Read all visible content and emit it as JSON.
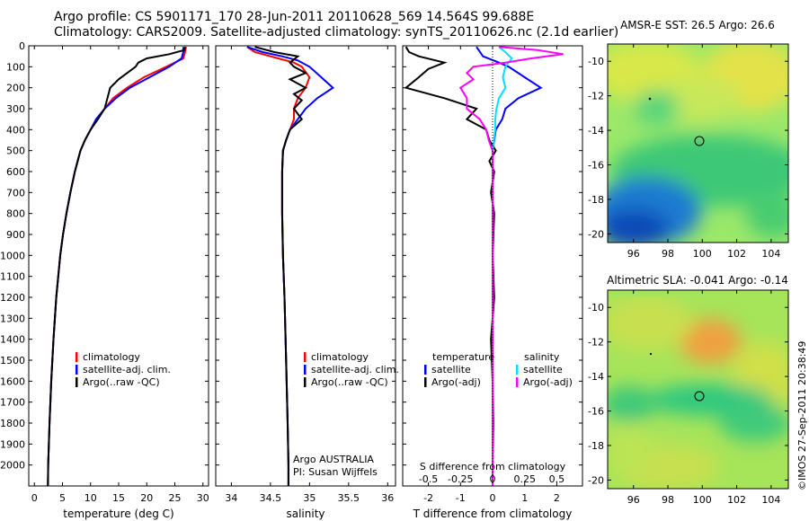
{
  "header": {
    "line1": "Argo profile: CS 5901171_170 28-Jun-2011 20110628_569 14.564S 99.688E",
    "line2": "Climatology: CARS2009. Satellite-adjusted climatology: synTS_20110626.nc (2.1d earlier)"
  },
  "credit": "©IMOS 27-Sep-2011 20:38:49",
  "colors": {
    "climatology": "#ff0000",
    "satellite": "#0000ff",
    "argo": "#000000",
    "salinity_satellite": "#00e0ff",
    "salinity_argo": "#ff00ff"
  },
  "chart_data": [
    {
      "type": "line",
      "panel": "temperature",
      "xlabel": "temperature (deg C)",
      "ylabel": "",
      "xlim": [
        -1,
        31
      ],
      "ylim": [
        2100,
        0
      ],
      "xticks": [
        "0",
        "5",
        "10",
        "15",
        "20",
        "25",
        "30"
      ],
      "yticks": [
        "0",
        "100",
        "200",
        "300",
        "400",
        "500",
        "600",
        "700",
        "800",
        "900",
        "1000",
        "1100",
        "1200",
        "1300",
        "1400",
        "1500",
        "1600",
        "1700",
        "1800",
        "1900",
        "2000"
      ],
      "legend": [
        "climatology",
        "satellite-adj. clim.",
        "Argo(..raw -QC)"
      ],
      "series": [
        {
          "name": "climatology",
          "color": "#ff0000",
          "depth": [
            5,
            30,
            60,
            100,
            150,
            200,
            250,
            300,
            350,
            400,
            450,
            500,
            600,
            700,
            800,
            900,
            1000,
            1200,
            1400,
            1600,
            1800,
            2000,
            2100
          ],
          "values": [
            27,
            26.8,
            26.5,
            23.5,
            19.5,
            16.5,
            14,
            12.5,
            11,
            10,
            9,
            8.2,
            7.2,
            6.4,
            5.7,
            5.1,
            4.6,
            3.9,
            3.4,
            3.0,
            2.7,
            2.45,
            2.4
          ]
        },
        {
          "name": "satellite-adj. clim.",
          "color": "#0000ff",
          "depth": [
            5,
            30,
            60,
            100,
            150,
            200,
            250,
            300,
            350,
            400,
            450,
            500,
            600,
            700,
            800,
            900,
            1000,
            1200,
            1400,
            1600,
            1800,
            2000,
            2100
          ],
          "values": [
            26.5,
            26.5,
            26.2,
            24,
            20.5,
            17,
            14.5,
            12.5,
            11,
            10,
            9,
            8.2,
            7.2,
            6.4,
            5.7,
            5.1,
            4.6,
            3.9,
            3.4,
            3.0,
            2.7,
            2.45,
            2.4
          ]
        },
        {
          "name": "Argo(..raw -QC)",
          "color": "#000000",
          "depth": [
            5,
            20,
            40,
            60,
            80,
            100,
            130,
            160,
            200,
            250,
            300,
            350,
            400,
            450,
            500,
            600,
            700,
            800,
            900,
            1000,
            1200,
            1400,
            1600,
            1800,
            2000,
            2100
          ],
          "values": [
            26.8,
            26.7,
            24,
            20,
            18.5,
            18,
            16.5,
            15,
            13.5,
            13,
            12.5,
            11.3,
            10,
            9,
            8.2,
            7.2,
            6.4,
            5.7,
            5.1,
            4.6,
            3.9,
            3.4,
            3.0,
            2.7,
            2.45,
            2.4
          ]
        }
      ]
    },
    {
      "type": "line",
      "panel": "salinity",
      "xlabel": "salinity",
      "ylabel": "",
      "xlim": [
        33.8,
        36.1
      ],
      "ylim": [
        2100,
        0
      ],
      "xticks": [
        "34",
        "34.5",
        "35",
        "35.5",
        "36"
      ],
      "legend": [
        "climatology",
        "satellite-adj. clim.",
        "Argo(..raw -QC)"
      ],
      "annotation": [
        "Argo AUSTRALIA",
        "PI: Susan Wijffels"
      ],
      "series": [
        {
          "name": "climatology",
          "color": "#ff0000",
          "depth": [
            5,
            30,
            60,
            80,
            100,
            150,
            200,
            250,
            300,
            350,
            400,
            450,
            500,
            600,
            800,
            1000,
            1200,
            1500,
            1800,
            2000,
            2100
          ],
          "values": [
            34.2,
            34.3,
            34.6,
            34.8,
            34.9,
            35.0,
            34.95,
            34.85,
            34.8,
            34.8,
            34.75,
            34.7,
            34.66,
            34.65,
            34.65,
            34.66,
            34.68,
            34.7,
            34.72,
            34.73,
            34.73
          ]
        },
        {
          "name": "satellite-adj. clim.",
          "color": "#0000ff",
          "depth": [
            5,
            30,
            50,
            70,
            100,
            150,
            200,
            250,
            300,
            350,
            400,
            450,
            500,
            600,
            800,
            1000,
            1200,
            1500,
            1800,
            2000,
            2100
          ],
          "values": [
            34.2,
            34.4,
            34.65,
            34.85,
            35.0,
            35.15,
            35.3,
            35.1,
            34.95,
            34.85,
            34.75,
            34.7,
            34.66,
            34.65,
            34.65,
            34.66,
            34.68,
            34.7,
            34.72,
            34.73,
            34.73
          ]
        },
        {
          "name": "Argo(..raw -QC)",
          "color": "#000000",
          "depth": [
            5,
            30,
            50,
            80,
            100,
            130,
            160,
            200,
            230,
            260,
            300,
            350,
            400,
            450,
            500,
            600,
            800,
            1000,
            1200,
            1500,
            1800,
            2000,
            2100
          ],
          "values": [
            34.3,
            34.55,
            34.85,
            34.75,
            34.8,
            34.95,
            34.75,
            34.95,
            34.8,
            34.9,
            34.8,
            34.9,
            34.75,
            34.7,
            34.66,
            34.65,
            34.65,
            34.66,
            34.68,
            34.7,
            34.72,
            34.73,
            34.73
          ]
        }
      ]
    },
    {
      "type": "line",
      "panel": "difference",
      "xlabel": "T difference from climatology",
      "xlabel_top": "S difference from climatology",
      "xlim": [
        -2.8,
        2.8
      ],
      "ylim": [
        2100,
        0
      ],
      "xticks": [
        "-2",
        "-1",
        "0",
        "1",
        "2"
      ],
      "xticks_top": [
        "-0.5",
        "-0.25",
        "0",
        "0.25",
        "0.5"
      ],
      "legend_temperature_title": "temperature",
      "legend_salinity_title": "salinity",
      "legend_temperature": [
        "satellite",
        "Argo(-adj)"
      ],
      "legend_salinity": [
        "satellite",
        "Argo(-adj)"
      ],
      "series": [
        {
          "name": "T satellite",
          "color": "#0000ff",
          "depth": [
            5,
            50,
            80,
            100,
            150,
            200,
            250,
            300,
            350,
            400,
            500,
            700,
            1000,
            1500,
            2000,
            2100
          ],
          "values": [
            -0.5,
            -0.3,
            0.2,
            0.5,
            1.0,
            1.5,
            0.8,
            0.4,
            0.3,
            0.1,
            0,
            0,
            0,
            0,
            0,
            0
          ]
        },
        {
          "name": "T Argo(-adj)",
          "color": "#000000",
          "depth": [
            5,
            30,
            50,
            80,
            110,
            150,
            200,
            250,
            300,
            350,
            400,
            450,
            500,
            550,
            600,
            700,
            800,
            1000,
            1200,
            1400,
            1600,
            1800,
            2000,
            2100
          ],
          "values": [
            -2.7,
            -2.6,
            -2.3,
            -1.5,
            -2.0,
            -2.3,
            -2.7,
            -1.5,
            -0.5,
            -0.8,
            -0.2,
            -0.1,
            0.1,
            -0.1,
            0.05,
            -0.05,
            0.05,
            0,
            0.05,
            -0.05,
            0,
            0.02,
            0,
            0
          ]
        },
        {
          "name": "S satellite",
          "color": "#00e0ff",
          "depth": [
            5,
            30,
            60,
            100,
            150,
            200,
            250,
            300,
            350,
            400,
            500,
            700,
            1000,
            1500,
            2000,
            2100
          ],
          "values": [
            0.05,
            0.1,
            0.15,
            0.1,
            0.08,
            0.1,
            0.05,
            0.03,
            0.02,
            0.02,
            0,
            0,
            0,
            0,
            0,
            0
          ]
        },
        {
          "name": "S Argo(-adj)",
          "color": "#ff00ff",
          "depth": [
            5,
            20,
            40,
            60,
            80,
            100,
            130,
            160,
            200,
            250,
            300,
            350,
            400,
            450,
            500,
            600,
            800,
            1000,
            1500,
            2000,
            2100
          ],
          "values": [
            0.05,
            0.35,
            0.55,
            0.3,
            0.1,
            -0.15,
            -0.2,
            -0.15,
            -0.25,
            -0.2,
            -0.2,
            -0.1,
            -0.05,
            -0.03,
            0,
            0,
            0,
            0,
            0,
            0,
            0
          ]
        }
      ]
    },
    {
      "type": "heatmap",
      "panel": "sst-map",
      "title": "AMSR-E SST: 26.5 Argo: 26.6",
      "xticks": [
        "96",
        "98",
        "100",
        "102",
        "104"
      ],
      "yticks": [
        "-10",
        "-12",
        "-14",
        "-16",
        "-18",
        "-20"
      ],
      "xlim": [
        94.5,
        105
      ],
      "ylim": [
        -20.5,
        -9
      ]
    },
    {
      "type": "heatmap",
      "panel": "sla-map",
      "title": "Altimetric SLA: -0.041 Argo: -0.14",
      "xticks": [
        "96",
        "98",
        "100",
        "102",
        "104"
      ],
      "yticks": [
        "-10",
        "-12",
        "-14",
        "-16",
        "-18",
        "-20"
      ],
      "xlim": [
        94.5,
        105
      ],
      "ylim": [
        -20.5,
        -9
      ]
    }
  ]
}
